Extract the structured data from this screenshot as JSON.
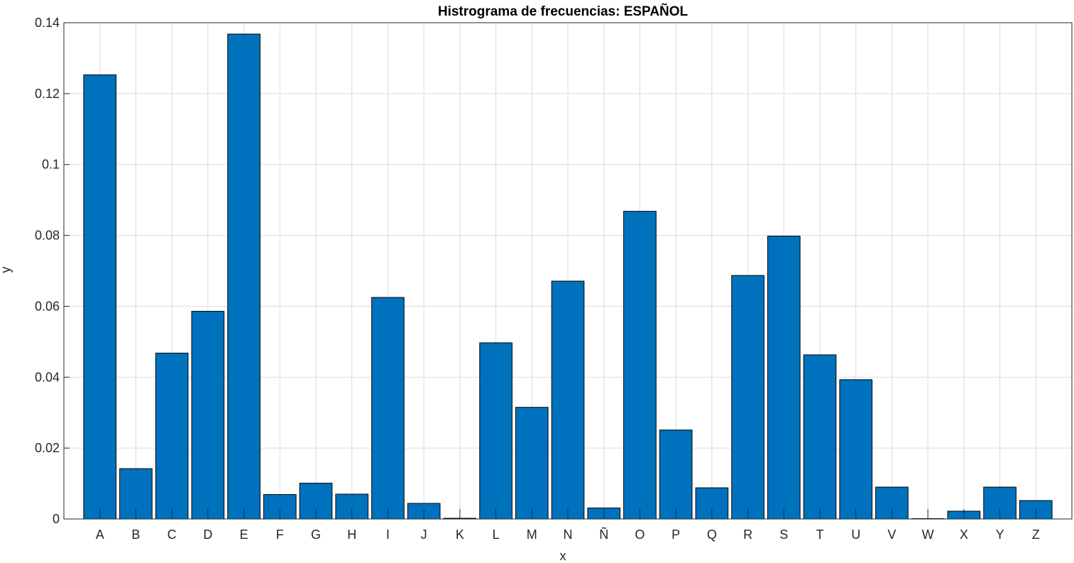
{
  "chart_data": {
    "type": "bar",
    "title": "Histrograma de frecuencias: ESPAÑOL",
    "xlabel": "x",
    "ylabel": "y",
    "ylim": [
      0,
      0.14
    ],
    "yticks": [
      "0",
      "0.02",
      "0.04",
      "0.06",
      "0.08",
      "0.1",
      "0.12",
      "0.14"
    ],
    "ytick_values": [
      0,
      0.02,
      0.04,
      0.06,
      0.08,
      0.1,
      0.12,
      0.14
    ],
    "grid": true,
    "bar_color": "#0072BD",
    "categories": [
      "A",
      "B",
      "C",
      "D",
      "E",
      "F",
      "G",
      "H",
      "I",
      "J",
      "K",
      "L",
      "M",
      "N",
      "Ñ",
      "O",
      "P",
      "Q",
      "R",
      "S",
      "T",
      "U",
      "V",
      "W",
      "X",
      "Y",
      "Z"
    ],
    "values": [
      0.1253,
      0.0142,
      0.0468,
      0.0586,
      0.1368,
      0.0069,
      0.0101,
      0.007,
      0.0625,
      0.0044,
      0.0002,
      0.0497,
      0.0315,
      0.0671,
      0.0031,
      0.0868,
      0.0251,
      0.0088,
      0.0687,
      0.0798,
      0.0463,
      0.0393,
      0.009,
      0.0001,
      0.0022,
      0.009,
      0.0052
    ]
  }
}
